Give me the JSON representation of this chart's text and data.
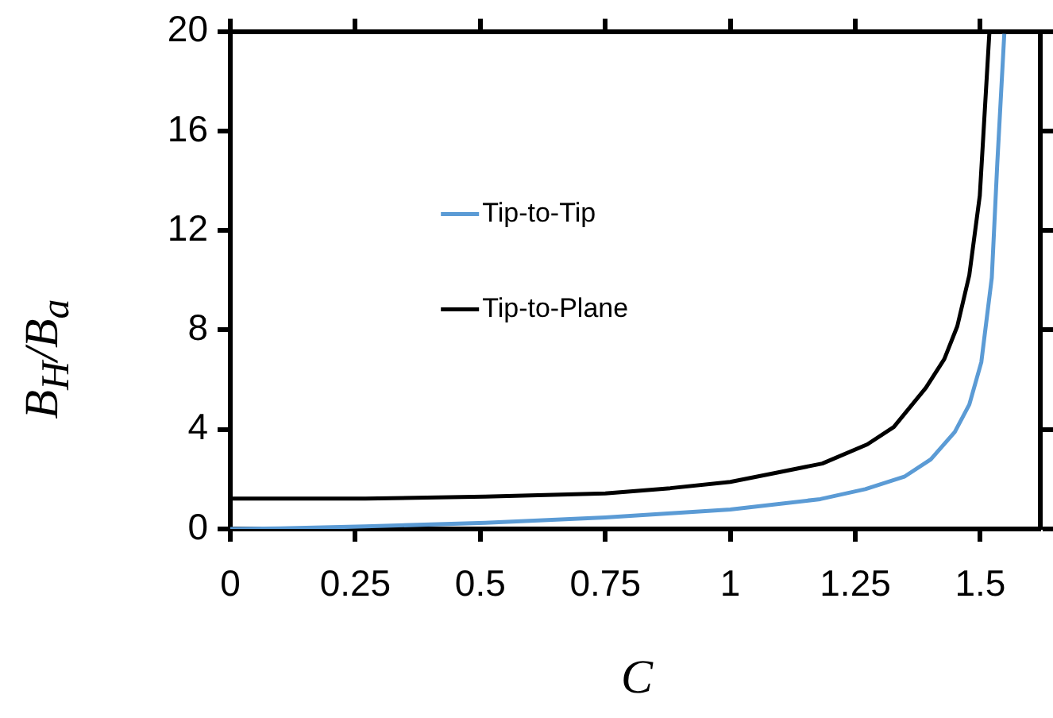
{
  "chart_data": {
    "type": "line",
    "xlabel": "C",
    "ylabel": "B$_{H}$/B$_{a}$",
    "xlim": [
      0,
      1.62
    ],
    "xticks": [
      0,
      0.25,
      0.5,
      0.75,
      1,
      1.25,
      1.5
    ],
    "ylim": [
      0,
      20
    ],
    "yticks": [
      0,
      4,
      8,
      12,
      16,
      20
    ],
    "grid": false,
    "legend": "top left",
    "marker": "none",
    "line_style": "solid",
    "series": [
      {
        "name": "Tip-to-Tip",
        "color": "#5b9bd5",
        "x": [
          0,
          0.1,
          0.27,
          0.51,
          0.75,
          1.0,
          1.18,
          1.27,
          1.348,
          1.401,
          1.449,
          1.478,
          1.502,
          1.523,
          1.534,
          1.548
        ],
        "values": [
          0,
          0.02,
          0.1,
          0.25,
          0.46,
          0.78,
          1.2,
          1.6,
          2.1,
          2.8,
          3.9,
          5.0,
          6.7,
          10.1,
          14.7,
          19.9
        ]
      },
      {
        "name": "Tip-to-Plane",
        "color": "#000000",
        "x": [
          0,
          0.27,
          0.51,
          0.75,
          0.88,
          1.0,
          1.09,
          1.184,
          1.274,
          1.327,
          1.391,
          1.428,
          1.454,
          1.478,
          1.499,
          1.518
        ],
        "values": [
          1.22,
          1.22,
          1.3,
          1.43,
          1.64,
          1.89,
          2.25,
          2.63,
          3.4,
          4.1,
          5.67,
          6.83,
          8.15,
          10.2,
          13.4,
          19.9
        ]
      }
    ]
  }
}
